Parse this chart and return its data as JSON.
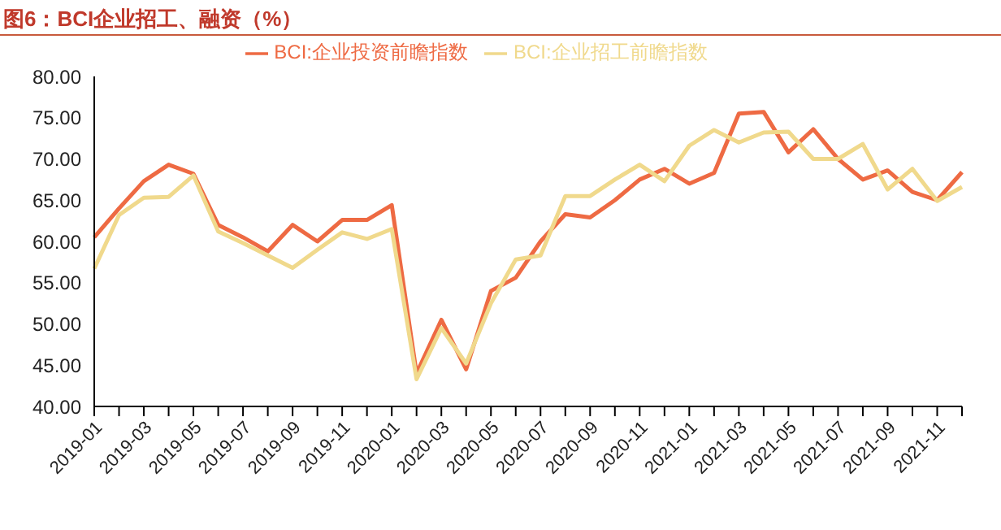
{
  "chart_data": {
    "type": "line",
    "title": "图6：BCI企业招工、融资（%）",
    "categories": [
      "2019-01",
      null,
      "2019-03",
      null,
      "2019-05",
      null,
      "2019-07",
      null,
      "2019-09",
      null,
      "2019-11",
      null,
      "2020-01",
      null,
      "2020-03",
      null,
      "2020-05",
      null,
      "2020-07",
      null,
      "2020-09",
      null,
      "2020-11",
      null,
      "2021-01",
      null,
      "2021-03",
      null,
      "2021-05",
      null,
      "2021-07",
      null,
      "2021-09",
      null,
      "2021-11",
      null
    ],
    "series": [
      {
        "name": "BCI:企业投资前瞻指数",
        "color": "#ee6a43",
        "values": [
          60.5,
          64,
          67.3,
          69.3,
          68.2,
          62,
          60.5,
          58.8,
          62,
          60,
          62.6,
          62.6,
          64.4,
          44,
          50.5,
          44.5,
          54,
          55.6,
          60,
          63.3,
          62.9,
          65,
          67.5,
          68.8,
          67,
          68.3,
          75.5,
          75.7,
          70.8,
          73.6,
          70,
          67.5,
          68.6,
          66,
          65,
          68.4
        ]
      },
      {
        "name": "BCI:企业招工前瞻指数",
        "color": "#f0d98c",
        "values": [
          56.7,
          63.2,
          65.3,
          65.4,
          68,
          61.2,
          59.8,
          58.3,
          56.8,
          59,
          61.1,
          60.3,
          61.5,
          43.3,
          49.5,
          45.2,
          52.5,
          57.8,
          58.3,
          65.5,
          65.5,
          67.5,
          69.3,
          67.3,
          71.6,
          73.5,
          72,
          73.2,
          73.3,
          70,
          70,
          71.8,
          66.3,
          68.8,
          64.9,
          66.6
        ]
      }
    ],
    "ylim": [
      40,
      80
    ],
    "yticks": [
      {
        "value": 40,
        "label": "40.00"
      },
      {
        "value": 45,
        "label": "45.00"
      },
      {
        "value": 50,
        "label": "50.00"
      },
      {
        "value": 55,
        "label": "55.00"
      },
      {
        "value": 60,
        "label": "60.00"
      },
      {
        "value": 65,
        "label": "65.00"
      },
      {
        "value": 70,
        "label": "70.00"
      },
      {
        "value": 75,
        "label": "75.00"
      },
      {
        "value": 80,
        "label": "80.00"
      }
    ],
    "grid": false,
    "legend": "top",
    "marker": "none",
    "line_style": "solid"
  }
}
